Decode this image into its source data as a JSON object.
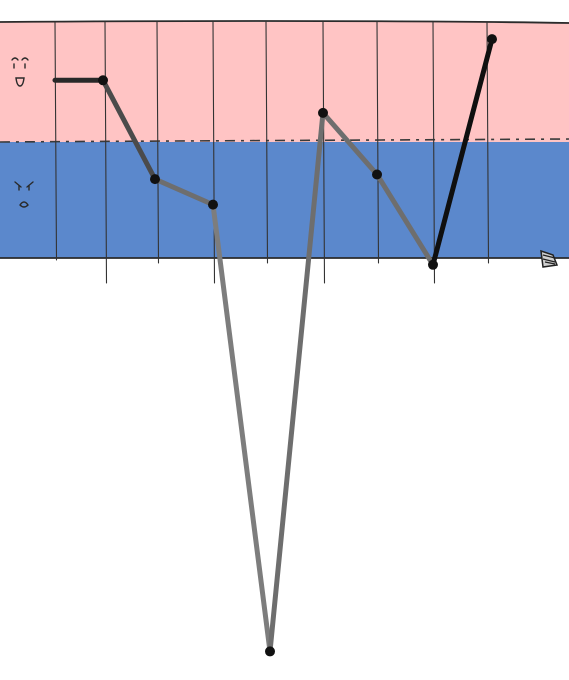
{
  "chart_data": {
    "type": "line",
    "title": "",
    "xlabel": "",
    "ylabel": "",
    "x": [
      1,
      2,
      3,
      4,
      5,
      6,
      7,
      8,
      9,
      10
    ],
    "series": [
      {
        "values": [
          0.86,
          0.86,
          0.34,
          0.23,
          -2.9,
          0.67,
          0.36,
          -0.05,
          null,
          1.1
        ]
      }
    ],
    "ylim": [
      -3.0,
      1.2
    ],
    "bands": [
      {
        "from": 0.5,
        "to": 1.2,
        "color": "#ffc4c4",
        "icon": "happy-face-icon"
      },
      {
        "from": 0.0,
        "to": 0.5,
        "color": "#5b88cc",
        "icon": "angry-face-icon"
      }
    ],
    "grid": true,
    "legend": "none",
    "line_color": "#000000"
  },
  "icons": {
    "band_icons": [
      "happy-face-icon",
      "angry-face-icon"
    ],
    "end_marker": "eraser-icon"
  }
}
